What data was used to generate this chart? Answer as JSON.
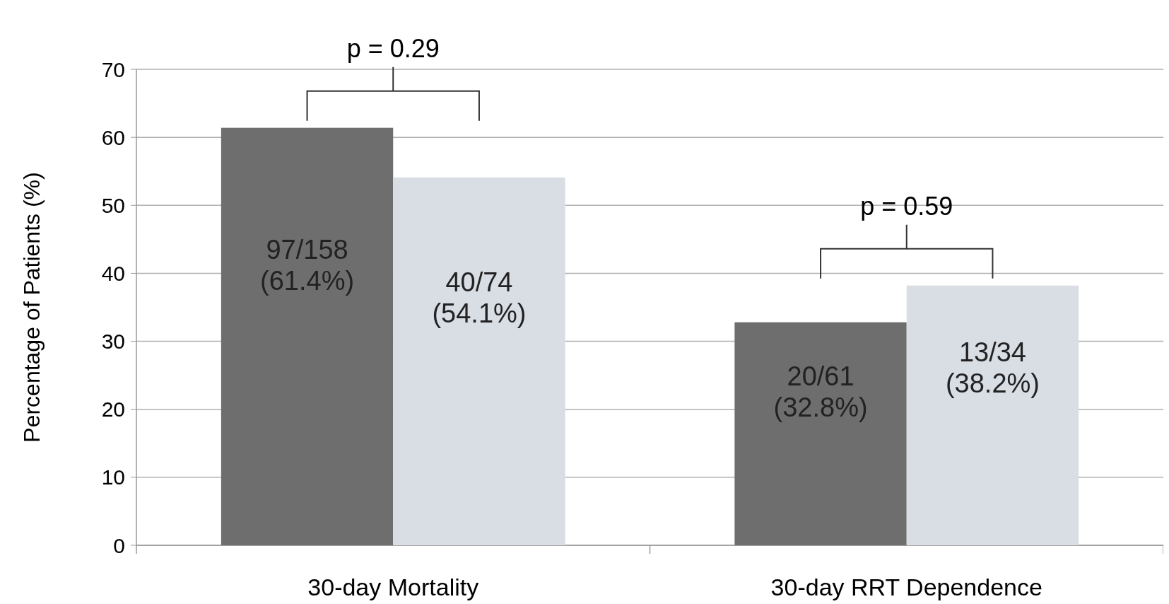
{
  "chart_data": {
    "type": "bar",
    "ylabel": "Percentage of Patients (%)",
    "categories": [
      "30-day Mortality",
      "30-day RRT Dependence"
    ],
    "series": [
      {
        "color": "#6e6e6e",
        "values": [
          61.4,
          32.8
        ],
        "value_labels": [
          "97/158\n(61.4%)",
          "20/61\n(32.8%)"
        ]
      },
      {
        "color": "#d9dde4",
        "values": [
          54.1,
          38.2
        ],
        "value_labels": [
          "40/74\n(54.1%)",
          "13/34\n(38.2%)"
        ]
      }
    ],
    "ylim": [
      0,
      70
    ],
    "yticks": [
      0,
      10,
      20,
      30,
      40,
      50,
      60,
      70
    ],
    "grid": "y",
    "annotations": [
      "p = 0.29",
      "p = 0.59"
    ]
  }
}
